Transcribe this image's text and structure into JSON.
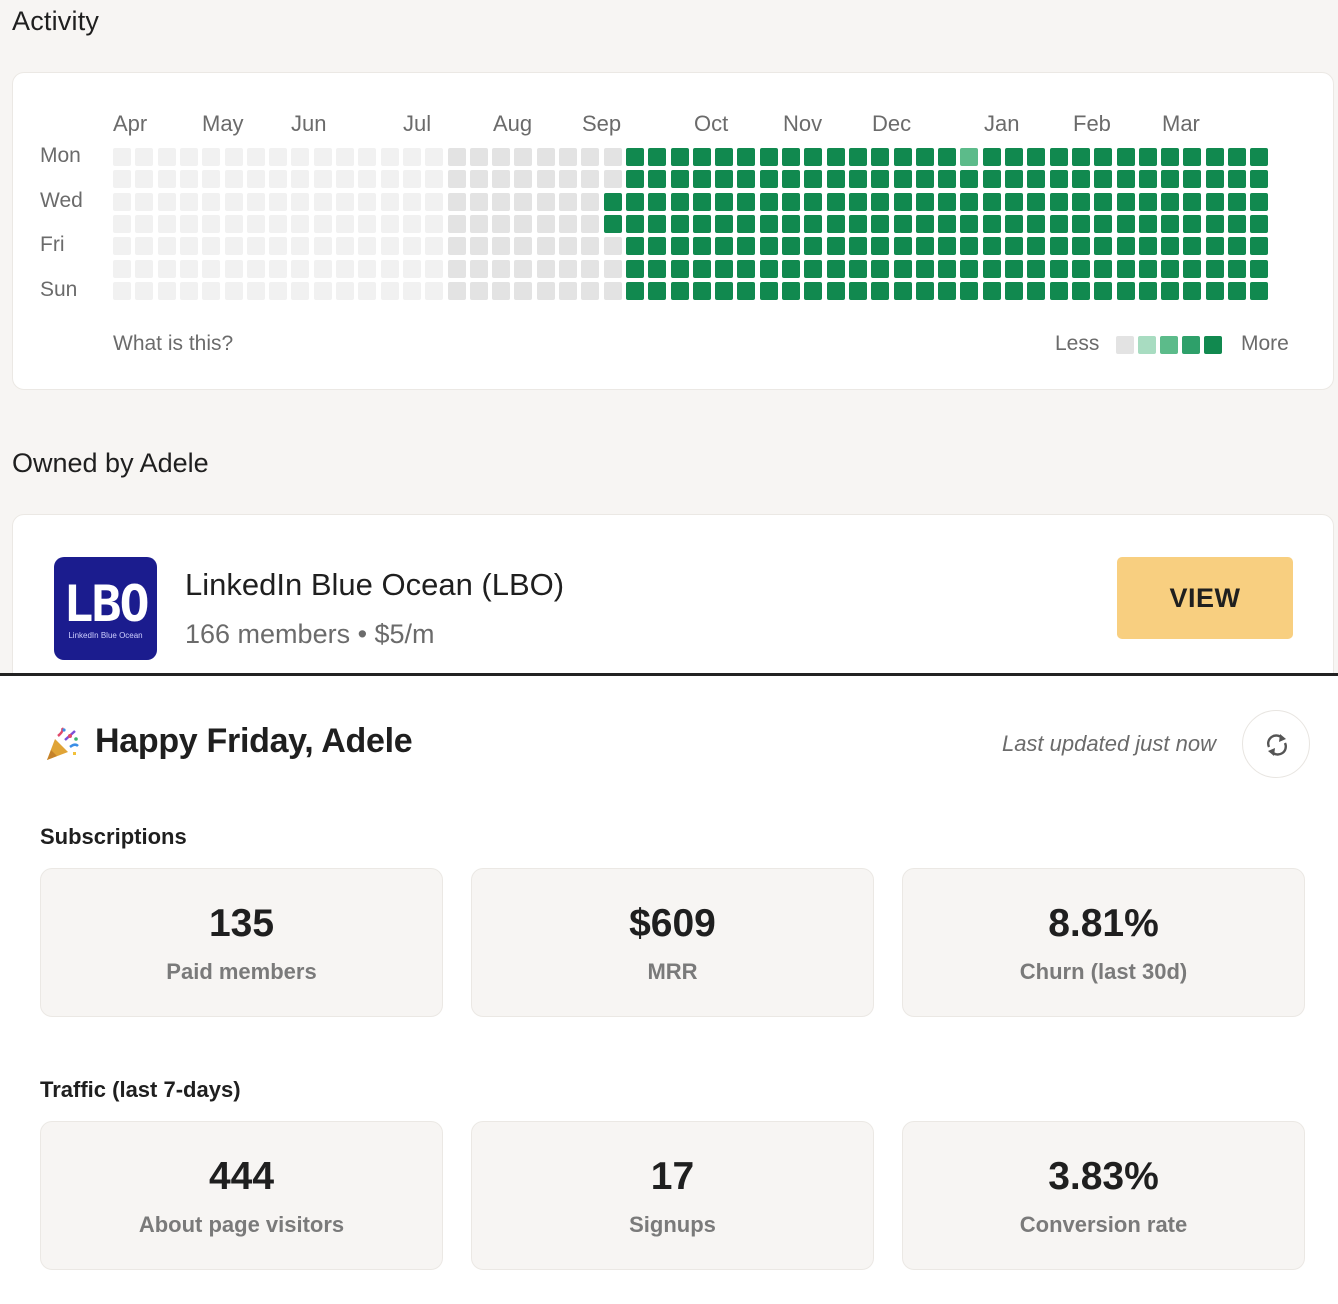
{
  "activity": {
    "title": "Activity",
    "months": [
      "Apr",
      "May",
      "Jun",
      "Jul",
      "Aug",
      "Sep",
      "Oct",
      "Nov",
      "Dec",
      "Jan",
      "Feb",
      "Mar"
    ],
    "day_labels": [
      "Mon",
      "Wed",
      "Fri",
      "Sun"
    ],
    "help_link": "What is this?",
    "legend_less": "Less",
    "legend_more": "More",
    "level_colors": [
      "#f1f1f1",
      "#e3e3e3",
      "#a8dcc1",
      "#5cbb8a",
      "#11894f"
    ],
    "weeks_level": [
      "0000000",
      "0000000",
      "0000000",
      "0000000",
      "0000000",
      "0000000",
      "0000000",
      "0000000",
      "0000000",
      "0000000",
      "0000000",
      "0000000",
      "0000000",
      "0000000",
      "0000000",
      "1111111",
      "1111111",
      "1111111",
      "1111111",
      "1111111",
      "1111111",
      "1111111",
      "1144111",
      "4444444",
      "4444444",
      "4444444",
      "4444444",
      "4444444",
      "4444444",
      "4444444",
      "4444444",
      "4444444",
      "4444444",
      "4444444",
      "4444444",
      "4444444",
      "4444444",
      "4444444",
      "3444444",
      "4444444",
      "4444444",
      "4444444",
      "4444444",
      "4444444",
      "4444444",
      "4444444",
      "4444444",
      "4444444",
      "4444444",
      "4444444",
      "4444444",
      "4444444",
      "4444444",
      "4444444",
      "4444444",
      "4444444",
      "4444444",
      "4444444",
      "4444444",
      "4444444",
      "4444444",
      "4444444",
      "4444444",
      "4444444",
      "4444444",
      "4444444",
      "4444444",
      "4444444",
      "4444444",
      "4444444",
      "4444444",
      "4444444",
      "4444444",
      "4444444",
      "4444444",
      "4444444",
      "4444444",
      "4444444",
      "4444444",
      "4444444",
      "4444444",
      "4444444",
      "4444444",
      "4444444",
      "4444444",
      "4444444",
      "4444444",
      "4444444",
      "4444444",
      "4444444",
      "3444444",
      "4444444",
      "4444444",
      "4444444",
      "4444444",
      "4444434",
      "4444444",
      "4444444",
      "4444444",
      "4444444",
      "4444434",
      "4444434",
      "4444444",
      "4444444",
      "4444444",
      "4444444",
      "4444444",
      "4444444",
      "4444444",
      "4444444",
      "4444444",
      "4444444",
      "4444444",
      "4444444",
      "4444444",
      "4444444",
      "4444444",
      "4444444",
      "4444444",
      "4444444",
      "4444444",
      "4444444",
      "4444444",
      "4444444",
      "4444444",
      "4444444",
      "4444444",
      "4444444",
      "4444444",
      "4444444",
      "4444444",
      "4444444",
      "4444444",
      "4444444",
      "4444444",
      "4444444",
      "4444444",
      "4444444",
      "4444444",
      "4444444",
      "3444444",
      "4444444",
      "4444444",
      "4444444",
      "4444444",
      "3442444",
      "4444444",
      "4444444",
      "4444444",
      "4444444",
      "4444444",
      "4444444",
      "4444444",
      "4444444",
      "4444444",
      "4444444",
      "4444444",
      "4444444",
      "4444444",
      "4444444",
      "3333333",
      "3434342",
      "3233433",
      "4333322",
      "3214323",
      "2332424",
      "3334332",
      "4444421",
      "4444444",
      "4444444",
      "4444444",
      "4444433",
      "2222222",
      "2222222",
      "2222222"
    ]
  },
  "owned": {
    "title": "Owned by Adele",
    "logo_text": "LBO",
    "logo_subtext": "LinkedIn Blue Ocean",
    "name": "LinkedIn Blue Ocean (LBO)",
    "meta": "166 members • $5/m",
    "view_label": "VIEW"
  },
  "dashboard": {
    "greeting": "Happy Friday, Adele",
    "greeting_icon": "party-popper-icon",
    "last_updated": "Last updated just now",
    "refresh_icon": "refresh-icon",
    "subscriptions_title": "Subscriptions",
    "subscriptions": [
      {
        "value": "135",
        "label": "Paid members"
      },
      {
        "value": "$609",
        "label": "MRR"
      },
      {
        "value": "8.81%",
        "label": "Churn (last 30d)"
      }
    ],
    "traffic_title": "Traffic (last 7-days)",
    "traffic": [
      {
        "value": "444",
        "label": "About page visitors"
      },
      {
        "value": "17",
        "label": "Signups"
      },
      {
        "value": "3.83%",
        "label": "Conversion rate"
      }
    ]
  }
}
